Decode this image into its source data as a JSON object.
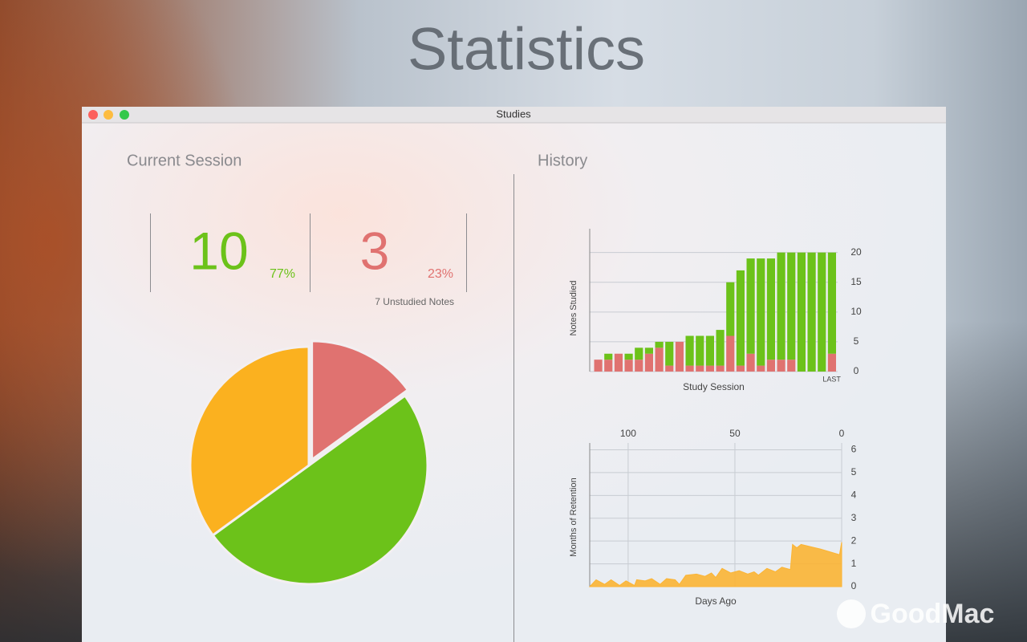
{
  "header": {
    "title": "Statistics"
  },
  "window": {
    "title": "Studies"
  },
  "current_session": {
    "heading": "Current Session",
    "studied": {
      "count": 10,
      "percent": "77%"
    },
    "incorrect": {
      "count": 3,
      "percent": "23%"
    },
    "unstudied_label": "7 Unstudied Notes"
  },
  "history": {
    "heading": "History"
  },
  "watermark": "GoodMac",
  "chart_data": [
    {
      "type": "pie",
      "values": [
        3,
        10,
        7
      ],
      "colors": [
        "#e07270",
        "#6cc21a",
        "#fbb11f"
      ]
    },
    {
      "type": "bar",
      "stacked": true,
      "categories": [
        null,
        null,
        null,
        null,
        null,
        null,
        null,
        null,
        null,
        null,
        null,
        null,
        null,
        null,
        null,
        null,
        null,
        null,
        null,
        null,
        null,
        null,
        null,
        "LAST"
      ],
      "series": [
        {
          "color": "#e07270",
          "values": [
            2,
            2,
            3,
            2,
            2,
            3,
            4,
            1,
            5,
            1,
            1,
            1,
            1,
            6,
            1,
            3,
            1,
            2,
            2,
            2,
            0,
            0,
            0,
            3
          ]
        },
        {
          "color": "#6cc21a",
          "values": [
            0,
            1,
            0,
            1,
            2,
            1,
            1,
            4,
            0,
            5,
            5,
            5,
            6,
            9,
            16,
            16,
            18,
            17,
            18,
            18,
            20,
            20,
            20,
            17
          ]
        }
      ],
      "ylim": [
        0,
        24
      ],
      "yticks": [
        0,
        5,
        10,
        15,
        20
      ],
      "grid": true,
      "ylabel": "Notes Studied",
      "xlabel": "Study Session"
    },
    {
      "type": "area",
      "color": "#fbb434",
      "x": [
        118,
        115,
        111,
        108,
        104,
        101,
        97,
        96,
        92,
        89,
        85,
        82,
        78,
        76,
        73,
        68,
        64,
        61,
        59,
        56,
        52,
        48,
        44,
        41,
        39,
        35,
        31,
        28,
        24,
        23,
        21,
        19,
        10,
        1,
        0
      ],
      "values": [
        0,
        0.3,
        0.1,
        0.3,
        0.05,
        0.25,
        0.05,
        0.3,
        0.25,
        0.35,
        0.1,
        0.35,
        0.3,
        0.1,
        0.5,
        0.55,
        0.45,
        0.6,
        0.4,
        0.8,
        0.6,
        0.7,
        0.55,
        0.65,
        0.5,
        0.8,
        0.65,
        0.85,
        0.75,
        1.85,
        1.7,
        1.85,
        1.65,
        1.4,
        1.95
      ],
      "xlim": [
        118,
        0
      ],
      "xticks": [
        100,
        50,
        0
      ],
      "ylim": [
        0,
        6.3
      ],
      "yticks": [
        0,
        1,
        2,
        3,
        4,
        5,
        6
      ],
      "grid": true,
      "ylabel": "Months of Retention",
      "xlabel": "Days Ago"
    }
  ]
}
